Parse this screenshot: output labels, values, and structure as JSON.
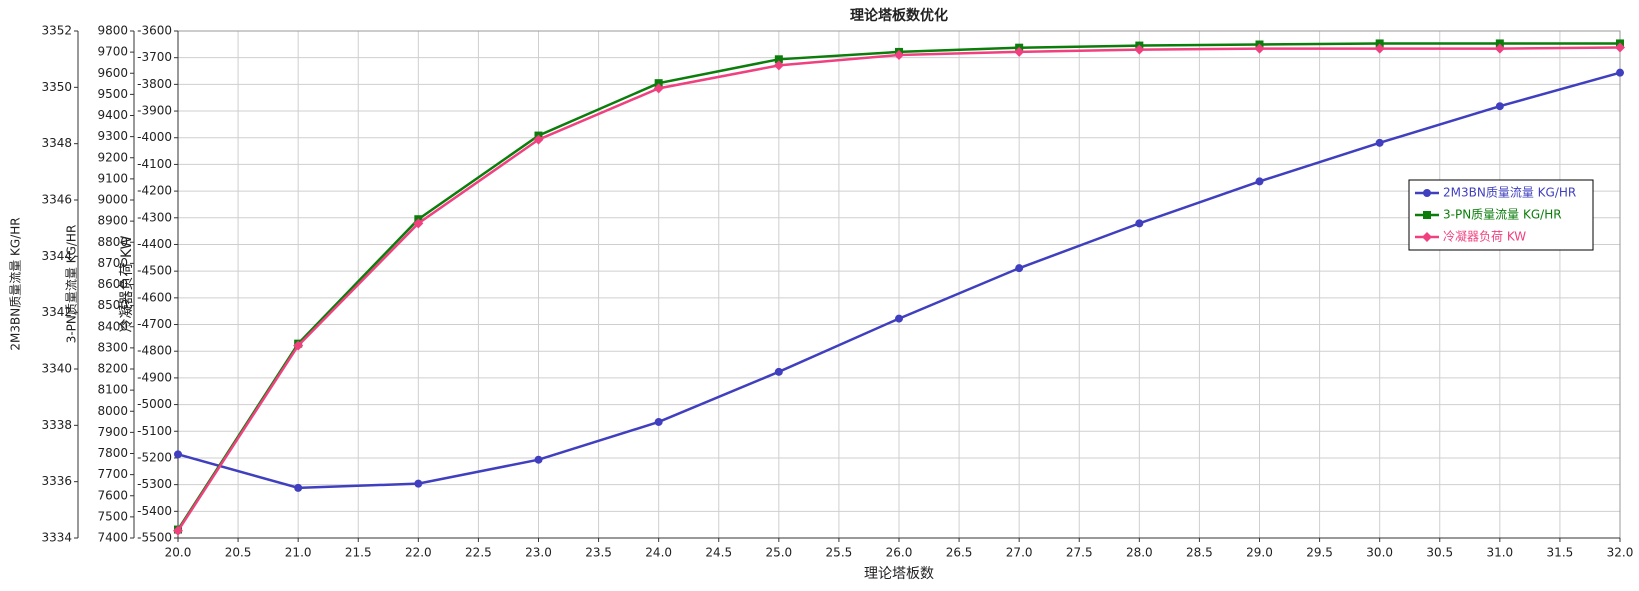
{
  "chart_data": {
    "type": "line",
    "title": "理论塔板数优化",
    "x_label": "理论塔板数",
    "x": [
      20,
      21,
      22,
      23,
      24,
      25,
      26,
      27,
      28,
      29,
      30,
      31,
      32
    ],
    "xlim": [
      20,
      32
    ],
    "xticks": [
      {
        "value": 20,
        "label": "20.0"
      },
      {
        "value": 20.5,
        "label": "20.5"
      },
      {
        "value": 21,
        "label": "21.0"
      },
      {
        "value": 21.5,
        "label": "21.5"
      },
      {
        "value": 22,
        "label": "22.0"
      },
      {
        "value": 22.5,
        "label": "22.5"
      },
      {
        "value": 23,
        "label": "23.0"
      },
      {
        "value": 23.5,
        "label": "23.5"
      },
      {
        "value": 24,
        "label": "24.0"
      },
      {
        "value": 24.5,
        "label": "24.5"
      },
      {
        "value": 25,
        "label": "25.0"
      },
      {
        "value": 25.5,
        "label": "25.5"
      },
      {
        "value": 26,
        "label": "26.0"
      },
      {
        "value": 26.5,
        "label": "26.5"
      },
      {
        "value": 27,
        "label": "27.0"
      },
      {
        "value": 27.5,
        "label": "27.5"
      },
      {
        "value": 28,
        "label": "28.0"
      },
      {
        "value": 28.5,
        "label": "28.5"
      },
      {
        "value": 29,
        "label": "29.0"
      },
      {
        "value": 29.5,
        "label": "29.5"
      },
      {
        "value": 30,
        "label": "30.0"
      },
      {
        "value": 30.5,
        "label": "30.5"
      },
      {
        "value": 31,
        "label": "31.0"
      },
      {
        "value": 31.5,
        "label": "31.5"
      },
      {
        "value": 32,
        "label": "32.0"
      }
    ],
    "y_label": "2M3BN质量流量 KG/HR",
    "ylim": [
      3334,
      3352
    ],
    "yticks": [
      3334,
      3336,
      3338,
      3340,
      3342,
      3344,
      3346,
      3348,
      3350,
      3352
    ],
    "y2_label": "3-PN质量流量 KG/HR",
    "y2lim": [
      7400,
      9800
    ],
    "y2ticks": [
      7400,
      7500,
      7600,
      7700,
      7800,
      7900,
      8000,
      8100,
      8200,
      8300,
      8400,
      8500,
      8600,
      8700,
      8800,
      8900,
      9000,
      9100,
      9200,
      9300,
      9400,
      9500,
      9600,
      9700,
      9800
    ],
    "y3_label": "冷凝器负荷 KW",
    "y3lim": [
      -5500,
      -3600
    ],
    "y3ticks": [
      -5500,
      -5400,
      -5300,
      -5200,
      -5100,
      -5000,
      -4900,
      -4800,
      -4700,
      -4600,
      -4500,
      -4400,
      -4300,
      -4200,
      -4100,
      -4000,
      -3900,
      -3800,
      -3700,
      -3600
    ],
    "grid": true,
    "legend": "right",
    "series": [
      {
        "name": "2M3BN质量流量 KG/HR",
        "color": "#3f3fbf",
        "marker": "circle",
        "axis": "y",
        "values": [
          3336.97,
          3335.78,
          3335.93,
          3336.78,
          3338.12,
          3339.9,
          3341.79,
          3343.58,
          3345.17,
          3346.66,
          3348.03,
          3349.33,
          3350.52
        ]
      },
      {
        "name": "3-PN质量流量 KG/HR",
        "color": "#0a7d0a",
        "marker": "square",
        "axis": "y2",
        "values": [
          7440,
          8320,
          8909,
          9305,
          9553,
          9666,
          9701,
          9721,
          9731,
          9736,
          9741,
          9741,
          9741
        ]
      },
      {
        "name": "冷凝器负荷 KW",
        "color": "#f0407f",
        "marker": "diamond",
        "axis": "y3",
        "values": [
          -5473,
          -4779,
          -4321,
          -4007,
          -3815,
          -3729,
          -3690,
          -3678,
          -3670,
          -3666,
          -3666,
          -3666,
          -3662
        ]
      }
    ]
  }
}
